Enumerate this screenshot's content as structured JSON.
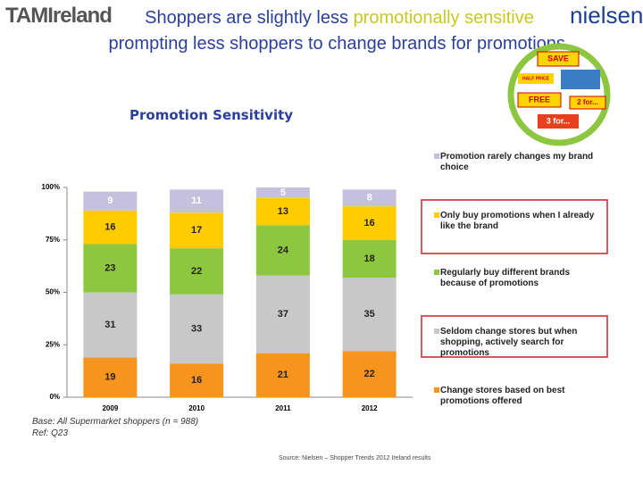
{
  "header": {
    "logo_left": "TAMIreland",
    "logo_right": "nielsen",
    "title_parts": [
      "Shoppers are slightly less ",
      "promotionally sensitive",
      " prompting less shoppers to change brands for promotions."
    ],
    "promo_badges": [
      "SAVE",
      "HALF PRICE",
      "FREE",
      "2 for...",
      "3 for..."
    ]
  },
  "chart_data": {
    "type": "stacked_bar",
    "title": "Promotion Sensitivity",
    "categories": [
      "2009",
      "2010",
      "2011",
      "2012"
    ],
    "series": [
      {
        "name": "Change stores based on best promotions offered",
        "color": "#f7941d",
        "values": [
          19,
          16,
          21,
          22
        ]
      },
      {
        "name": "Seldom change stores but when shopping, actively search for promotions",
        "color": "#c8c8c8",
        "values": [
          31,
          33,
          37,
          35
        ]
      },
      {
        "name": "Regularly buy different brands because of promotions",
        "color": "#8dc63f",
        "values": [
          23,
          22,
          24,
          18
        ]
      },
      {
        "name": "Only buy promotions when I already like the brand",
        "color": "#ffcc00",
        "values": [
          16,
          17,
          13,
          16
        ]
      },
      {
        "name": "Promotion rarely changes my brand choice",
        "color": "#c5c0dd",
        "values": [
          9,
          11,
          5,
          8
        ]
      }
    ],
    "ylim": [
      0,
      100
    ],
    "yticks": [
      {
        "value": 0,
        "label": "0%"
      },
      {
        "value": 25,
        "label": "25%"
      },
      {
        "value": 50,
        "label": "50%"
      },
      {
        "value": 75,
        "label": "75%"
      },
      {
        "value": 100,
        "label": "100%"
      }
    ],
    "highlighted_legend": [
      3,
      1
    ]
  },
  "footer": {
    "base": "Base: All Supermarket shoppers (n = 988)",
    "ref": "Ref: Q23",
    "source": "Source: Nielsen – Shopper Trends 2012 Ireland results"
  }
}
